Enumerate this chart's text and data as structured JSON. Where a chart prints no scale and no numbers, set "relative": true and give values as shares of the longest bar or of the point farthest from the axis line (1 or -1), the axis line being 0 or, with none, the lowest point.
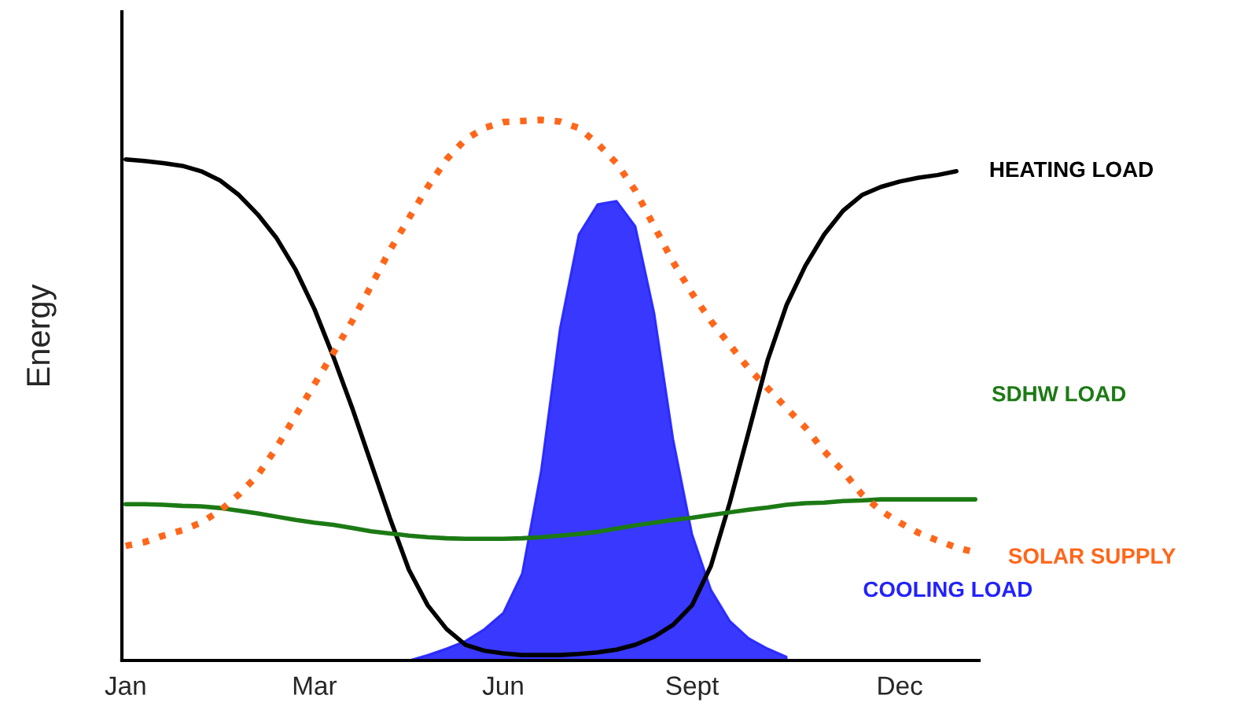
{
  "chart_data": {
    "type": "line",
    "relative": true,
    "ylabel": "Energy",
    "categories": [
      "Jan",
      null,
      null,
      null,
      null,
      null,
      null,
      null,
      null,
      null,
      "Mar",
      null,
      null,
      null,
      null,
      null,
      null,
      null,
      null,
      null,
      "Jun",
      null,
      null,
      null,
      null,
      null,
      null,
      null,
      null,
      null,
      "Sept",
      null,
      null,
      null,
      null,
      null,
      null,
      null,
      null,
      null,
      null,
      "Dec",
      null,
      null,
      null,
      null
    ],
    "series": [
      {
        "name": "HEATING LOAD",
        "color": "#000000",
        "line_style": "solid",
        "values": [
          0.927,
          0.924,
          0.92,
          0.915,
          0.905,
          0.888,
          0.861,
          0.825,
          0.781,
          0.723,
          0.65,
          0.562,
          0.467,
          0.365,
          0.263,
          0.168,
          0.102,
          0.058,
          0.029,
          0.018,
          0.013,
          0.01,
          0.01,
          0.01,
          0.012,
          0.015,
          0.02,
          0.029,
          0.044,
          0.066,
          0.102,
          0.175,
          0.292,
          0.423,
          0.555,
          0.657,
          0.73,
          0.788,
          0.832,
          0.861,
          0.876,
          0.886,
          0.893,
          0.898,
          0.905,
          null
        ]
      },
      {
        "name": "SDHW LOAD",
        "color": "#1c7a14",
        "line_style": "solid",
        "values": [
          0.289,
          0.289,
          0.288,
          0.286,
          0.285,
          0.282,
          0.277,
          0.272,
          0.266,
          0.26,
          0.255,
          0.251,
          0.245,
          0.239,
          0.235,
          0.231,
          0.228,
          0.226,
          0.225,
          0.225,
          0.225,
          0.226,
          0.228,
          0.231,
          0.234,
          0.238,
          0.244,
          0.25,
          0.255,
          0.26,
          0.264,
          0.269,
          0.274,
          0.279,
          0.283,
          0.288,
          0.291,
          0.292,
          0.295,
          0.296,
          0.298,
          0.298,
          0.298,
          0.298,
          0.298,
          0.298
        ]
      },
      {
        "name": "SOLAR SUPPLY",
        "color": "#ff661a",
        "line_style": "dotted",
        "values": [
          0.212,
          0.219,
          0.231,
          0.241,
          0.255,
          0.277,
          0.307,
          0.343,
          0.394,
          0.453,
          0.511,
          0.569,
          0.628,
          0.693,
          0.759,
          0.818,
          0.876,
          0.927,
          0.964,
          0.985,
          0.996,
          0.998,
          1.0,
          0.997,
          0.985,
          0.956,
          0.92,
          0.869,
          0.803,
          0.737,
          0.679,
          0.628,
          0.584,
          0.54,
          0.504,
          0.467,
          0.431,
          0.387,
          0.35,
          0.307,
          0.277,
          0.255,
          0.236,
          0.222,
          0.209,
          0.2
        ]
      },
      {
        "name": "COOLING LOAD",
        "color": "#2222ff",
        "type": "area",
        "values": [
          null,
          null,
          null,
          null,
          null,
          null,
          null,
          null,
          null,
          null,
          null,
          null,
          null,
          null,
          null,
          0,
          0.01,
          0.022,
          0.036,
          0.058,
          0.088,
          0.161,
          0.35,
          0.613,
          0.788,
          0.844,
          0.85,
          0.803,
          0.642,
          0.409,
          0.234,
          0.131,
          0.073,
          0.041,
          0.022,
          0.007,
          null,
          null,
          null,
          null,
          null,
          null,
          null,
          null,
          null,
          null
        ]
      }
    ]
  }
}
